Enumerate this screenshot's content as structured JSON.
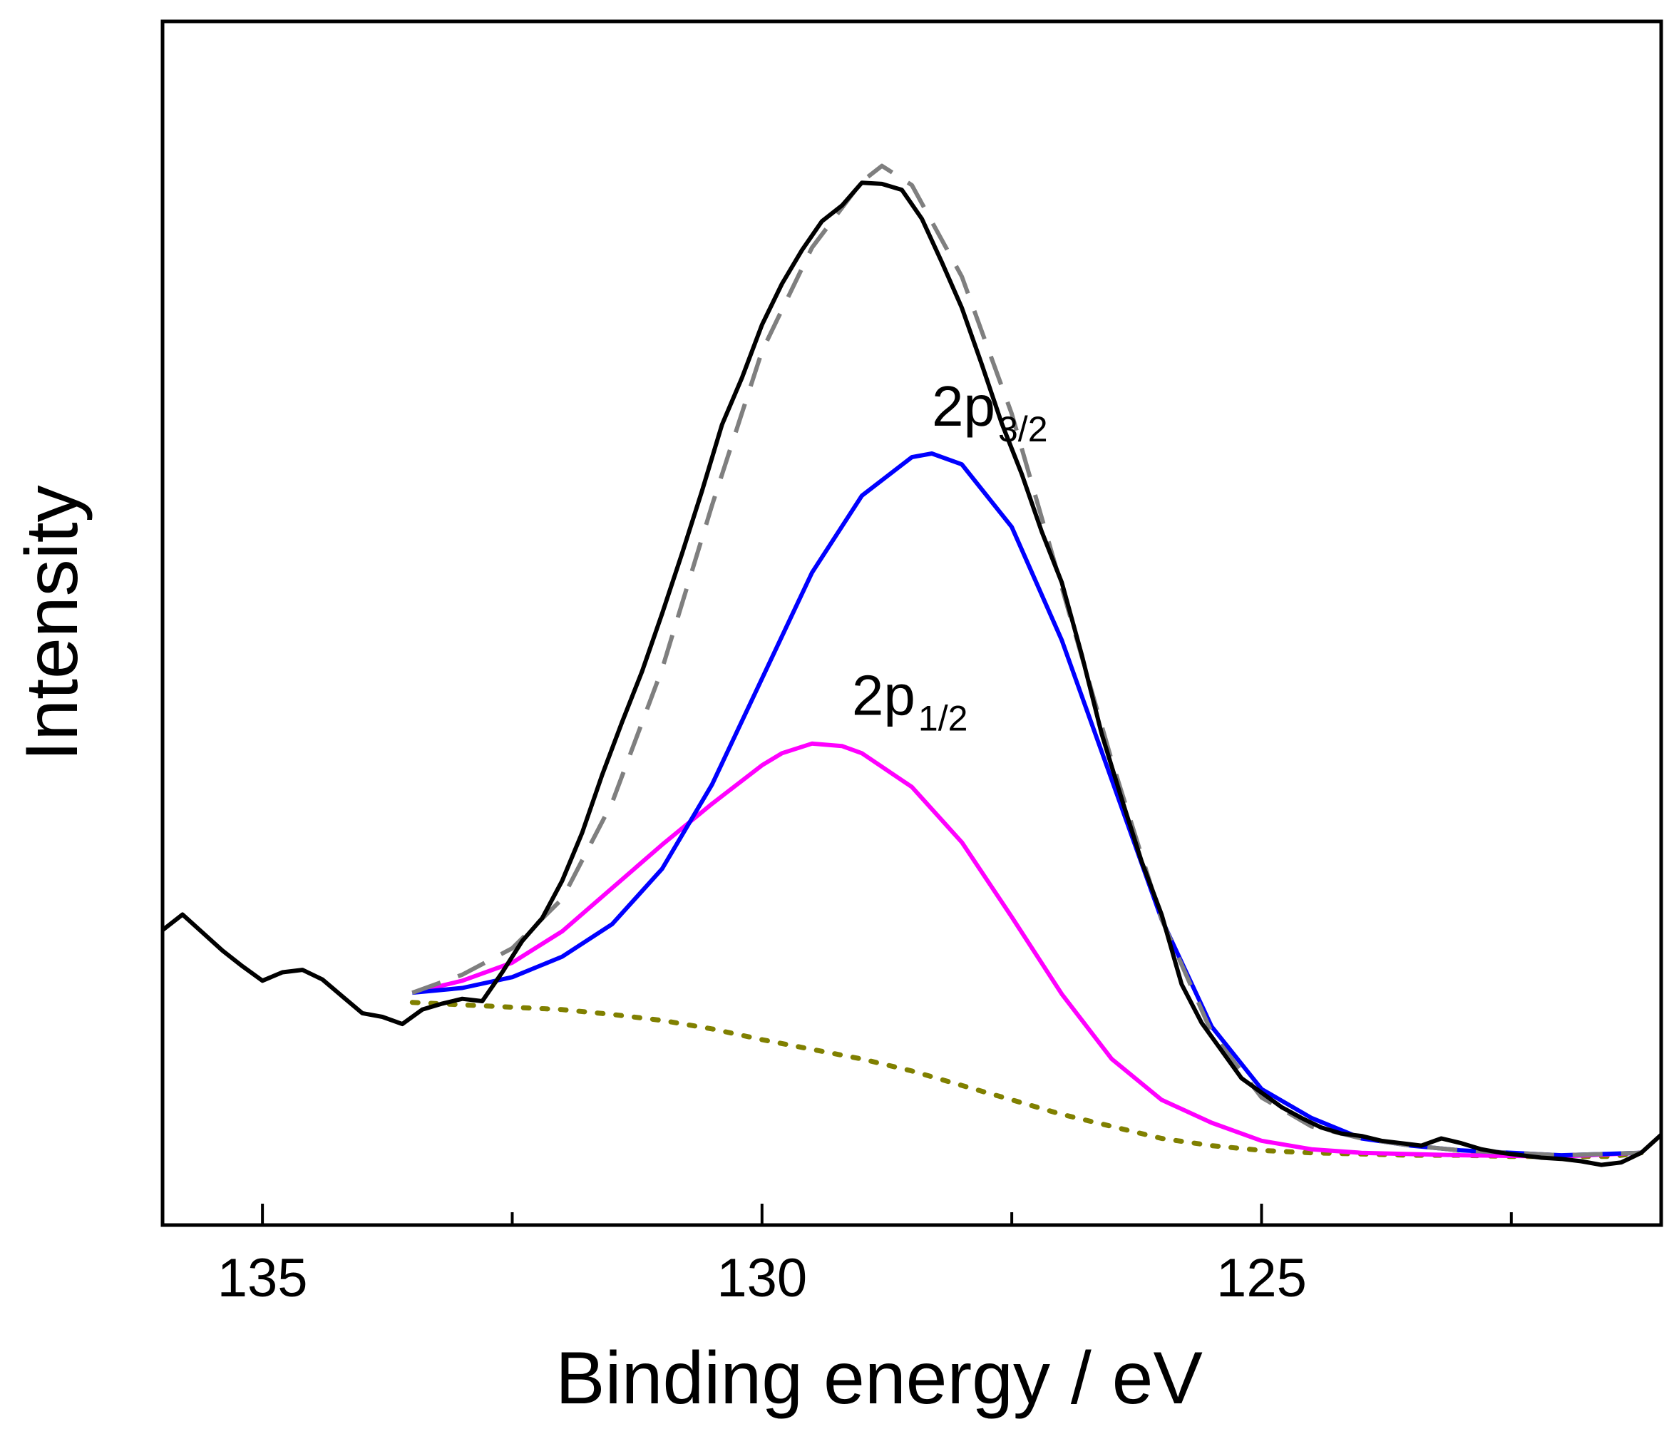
{
  "chart_data": {
    "type": "line",
    "title": "",
    "xlabel": "Binding energy / eV",
    "ylabel": "Intensity",
    "x_reversed": true,
    "xlim": [
      136.0,
      121.0
    ],
    "ylim": [
      0,
      100
    ],
    "x_ticks_major": [
      135,
      130,
      125
    ],
    "x_tick_labels": [
      "135",
      "130",
      "125"
    ],
    "x_ticks_minor": [
      132.5,
      127.5,
      122.5
    ],
    "y_ticks_shown": false,
    "grid": false,
    "legend": "none",
    "annotations": [
      {
        "base": "2p",
        "sub": "3/2",
        "x": 128.3,
        "y": 66.4,
        "color": "#000000"
      },
      {
        "base": "2p",
        "sub": "1/2",
        "x": 129.1,
        "y": 42.4,
        "color": "#000000"
      }
    ],
    "series": [
      {
        "key": "background",
        "style": "dotted",
        "color": "#808000",
        "x": [
          133.5,
          133.0,
          132.5,
          132.0,
          131.5,
          131.0,
          130.5,
          130.0,
          129.5,
          129.0,
          128.5,
          128.0,
          127.5,
          127.0,
          126.5,
          126.0,
          125.5,
          125.0,
          124.5,
          124.0,
          123.5,
          123.0,
          122.5,
          122.0,
          121.5,
          121.2
        ],
        "y": [
          18.5,
          18.3,
          18.1,
          17.9,
          17.5,
          17.0,
          16.3,
          15.4,
          14.6,
          13.8,
          12.8,
          11.6,
          10.4,
          9.2,
          8.2,
          7.2,
          6.6,
          6.2,
          6.0,
          5.9,
          5.8,
          5.8,
          5.7,
          5.7,
          5.7,
          6.0
        ]
      },
      {
        "key": "2p_half",
        "style": "solid",
        "color": "#ff00ff",
        "x": [
          133.5,
          133.0,
          132.5,
          132.0,
          131.5,
          131.0,
          130.5,
          130.0,
          129.8,
          129.5,
          129.2,
          129.0,
          128.5,
          128.0,
          127.5,
          127.0,
          126.5,
          126.0,
          125.5,
          125.0,
          124.5,
          124.0,
          123.0,
          122.0,
          121.2
        ],
        "y": [
          19.3,
          20.3,
          21.8,
          24.4,
          28.0,
          31.6,
          35.0,
          38.2,
          39.2,
          40.0,
          39.8,
          39.2,
          36.4,
          31.8,
          25.6,
          19.2,
          13.8,
          10.4,
          8.5,
          7.0,
          6.3,
          6.0,
          5.8,
          5.7,
          6.0
        ]
      },
      {
        "key": "2p_three_half",
        "style": "solid",
        "color": "#0000ff",
        "x": [
          133.5,
          133.0,
          132.5,
          132.0,
          131.5,
          131.0,
          130.5,
          130.0,
          129.5,
          129.0,
          128.5,
          128.3,
          128.0,
          127.5,
          127.0,
          126.5,
          126.0,
          125.5,
          125.0,
          124.5,
          124.0,
          123.5,
          123.0,
          122.0,
          121.2
        ],
        "y": [
          19.3,
          19.7,
          20.6,
          22.3,
          25.0,
          29.6,
          36.6,
          45.4,
          54.2,
          60.6,
          63.8,
          64.1,
          63.2,
          58.0,
          48.6,
          37.0,
          25.4,
          16.5,
          11.3,
          8.9,
          7.2,
          6.6,
          6.2,
          5.8,
          6.0
        ]
      },
      {
        "key": "fit_envelope",
        "style": "dashed",
        "color": "#7f7f7f",
        "x": [
          133.5,
          133.0,
          132.5,
          132.0,
          131.5,
          131.0,
          130.5,
          130.0,
          129.5,
          129.0,
          128.8,
          128.5,
          128.0,
          127.5,
          127.0,
          126.5,
          126.0,
          125.5,
          125.0,
          124.5,
          124.0,
          123.5,
          123.0,
          122.0,
          121.2
        ],
        "y": [
          19.3,
          20.8,
          23.0,
          27.1,
          35.1,
          46.2,
          59.8,
          72.6,
          81.2,
          86.7,
          88.0,
          86.4,
          78.8,
          67.4,
          53.0,
          38.6,
          25.4,
          16.0,
          10.6,
          8.2,
          7.2,
          6.6,
          6.2,
          5.8,
          6.0
        ]
      },
      {
        "key": "experimental",
        "style": "solid",
        "color": "#000000",
        "x": [
          136.0,
          135.8,
          135.6,
          135.4,
          135.2,
          135.0,
          134.8,
          134.6,
          134.4,
          134.2,
          134.0,
          133.8,
          133.6,
          133.4,
          133.2,
          133.0,
          132.8,
          132.6,
          132.4,
          132.2,
          132.0,
          131.8,
          131.6,
          131.4,
          131.2,
          131.0,
          130.8,
          130.6,
          130.4,
          130.2,
          130.0,
          129.8,
          129.6,
          129.4,
          129.2,
          129.0,
          128.8,
          128.6,
          128.4,
          128.2,
          128.0,
          127.8,
          127.6,
          127.4,
          127.2,
          127.0,
          126.8,
          126.6,
          126.4,
          126.2,
          126.0,
          125.8,
          125.6,
          125.4,
          125.2,
          125.0,
          124.8,
          124.6,
          124.4,
          124.2,
          124.0,
          123.8,
          123.6,
          123.4,
          123.2,
          123.0,
          122.8,
          122.6,
          122.4,
          122.2,
          122.0,
          121.8,
          121.6,
          121.4,
          121.2,
          121.0
        ],
        "y": [
          24.5,
          25.8,
          24.3,
          22.8,
          21.5,
          20.3,
          21.0,
          21.2,
          20.4,
          19.0,
          17.6,
          17.3,
          16.7,
          17.9,
          18.4,
          18.8,
          18.6,
          21.0,
          23.6,
          25.5,
          28.6,
          32.6,
          37.4,
          41.8,
          46.0,
          50.8,
          55.8,
          61.0,
          66.5,
          70.4,
          74.8,
          78.2,
          81.0,
          83.4,
          84.7,
          86.6,
          86.5,
          86.0,
          83.6,
          80.0,
          76.2,
          71.5,
          66.6,
          62.4,
          57.6,
          53.4,
          47.4,
          40.8,
          35.4,
          30.2,
          25.8,
          20.0,
          16.8,
          14.5,
          12.2,
          11.0,
          9.8,
          8.9,
          8.1,
          7.6,
          7.4,
          7.0,
          6.8,
          6.6,
          7.2,
          6.8,
          6.3,
          6.0,
          5.8,
          5.6,
          5.5,
          5.3,
          5.0,
          5.2,
          6.0,
          7.5
        ]
      }
    ]
  }
}
